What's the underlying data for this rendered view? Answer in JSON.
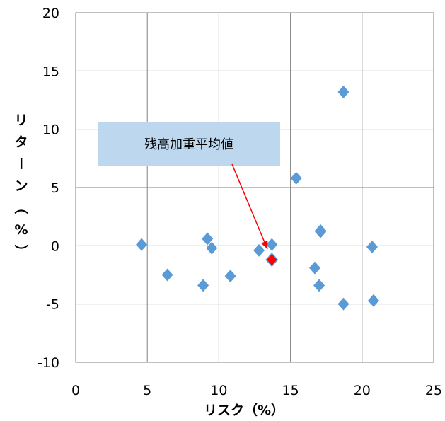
{
  "chart_data": {
    "type": "scatter",
    "xlabel": "リスク（%）",
    "ylabel": "リターン（%）",
    "xlim": [
      0,
      25
    ],
    "ylim": [
      -10,
      20
    ],
    "xticks": [
      0,
      5,
      10,
      15,
      20,
      25
    ],
    "yticks": [
      -10,
      -5,
      0,
      5,
      10,
      15,
      20
    ],
    "grid": true,
    "series": [
      {
        "color": "#5B9BD5",
        "marker": "diamond",
        "points": [
          {
            "x": 4.6,
            "y": 0.1
          },
          {
            "x": 6.4,
            "y": -2.5
          },
          {
            "x": 8.9,
            "y": -3.4
          },
          {
            "x": 9.2,
            "y": 0.6
          },
          {
            "x": 9.5,
            "y": -0.2
          },
          {
            "x": 10.8,
            "y": -2.6
          },
          {
            "x": 12.8,
            "y": -0.4
          },
          {
            "x": 13.7,
            "y": 0.1
          },
          {
            "x": 15.4,
            "y": 5.8
          },
          {
            "x": 16.7,
            "y": -1.9
          },
          {
            "x": 17.0,
            "y": -3.4
          },
          {
            "x": 17.1,
            "y": 1.3
          },
          {
            "x": 17.1,
            "y": 1.2
          },
          {
            "x": 18.7,
            "y": 13.2
          },
          {
            "x": 18.7,
            "y": -5.0
          },
          {
            "x": 20.7,
            "y": -0.1
          },
          {
            "x": 20.8,
            "y": -4.7
          }
        ]
      },
      {
        "color": "#FF0000",
        "marker": "diamond",
        "points": [
          {
            "x": 13.7,
            "y": -1.2
          }
        ]
      }
    ],
    "annotations": [
      {
        "text": "残高加重平均値",
        "target": {
          "x": 13.7,
          "y": -1.2
        }
      }
    ]
  }
}
